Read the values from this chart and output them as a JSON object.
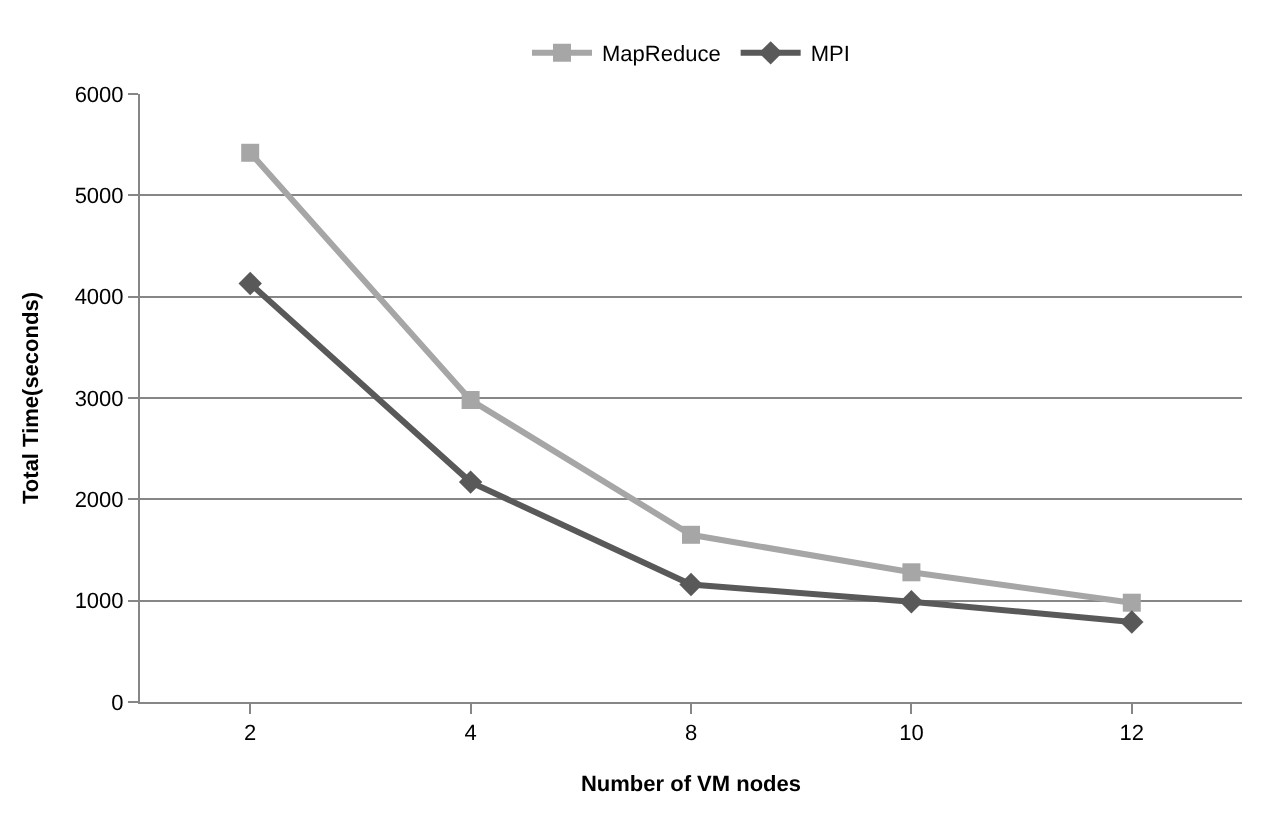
{
  "chart_data": {
    "type": "line",
    "xlabel": "Number of VM nodes",
    "ylabel": "Total Time(seconds)",
    "categories": [
      "2",
      "4",
      "8",
      "10",
      "12"
    ],
    "series": [
      {
        "name": "MapReduce",
        "color": "#a6a6a6",
        "marker": "square",
        "values": [
          5420,
          2980,
          1650,
          1280,
          980
        ]
      },
      {
        "name": "MPI",
        "color": "#595959",
        "marker": "diamond",
        "values": [
          4130,
          2170,
          1160,
          990,
          790
        ]
      }
    ],
    "ylim": [
      0,
      6000
    ],
    "yticks": [
      0,
      1000,
      2000,
      3000,
      4000,
      5000,
      6000
    ],
    "grid": "y",
    "legend": "top"
  }
}
